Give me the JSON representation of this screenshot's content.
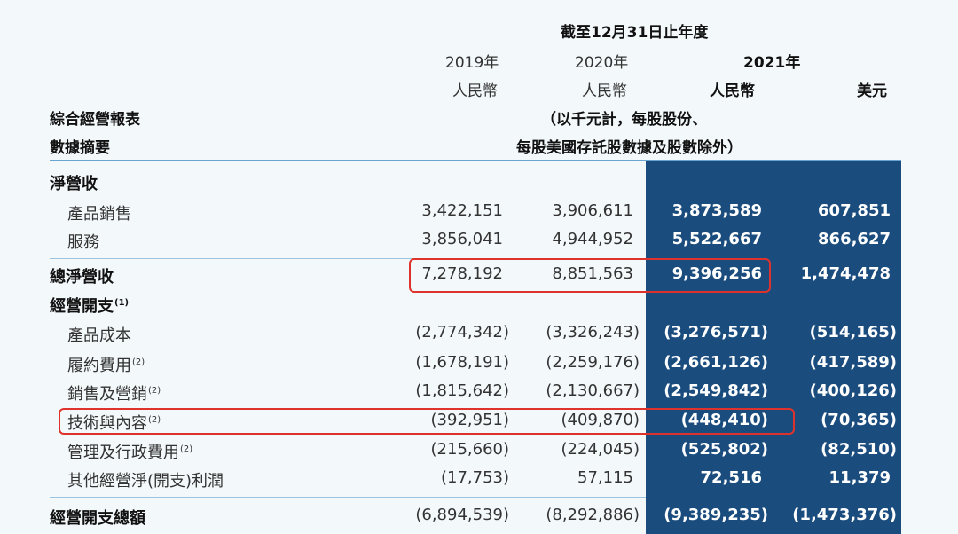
{
  "header": {
    "period": "截至12月31日止年度",
    "year_2019": "2019年",
    "year_2020": "2020年",
    "year_2021": "2021年",
    "rmb_2019": "人民幣",
    "rmb_2020": "人民幣",
    "rmb_2021": "人民幣",
    "usd": "美元",
    "unit_line1": "（以千元計，每股股份、",
    "unit_line2": "每股美國存託股數據及股數除外）"
  },
  "titles": {
    "statement": "綜合經營報表",
    "summary": "數據摘要"
  },
  "rows": [
    {
      "label": "淨營收",
      "section": true,
      "note": "",
      "values": [
        "",
        "",
        "",
        ""
      ]
    },
    {
      "label": "產品銷售",
      "section": false,
      "note": "",
      "values": [
        "3,422,151",
        "3,906,611",
        "3,873,589",
        "607,851"
      ]
    },
    {
      "label": "服務",
      "section": false,
      "note": "",
      "values": [
        "3,856,041",
        "4,944,952",
        "5,522,667",
        "866,627"
      ]
    },
    {
      "label": "總淨營收",
      "section": true,
      "note": "",
      "values": [
        "7,278,192",
        "8,851,563",
        "9,396,256",
        "1,474,478"
      ]
    },
    {
      "label": "經營開支",
      "section": true,
      "note": "(1)",
      "values": [
        "",
        "",
        "",
        ""
      ]
    },
    {
      "label": "產品成本",
      "section": false,
      "note": "",
      "values": [
        "(2,774,342)",
        "(3,326,243)",
        "(3,276,571)",
        "(514,165)"
      ]
    },
    {
      "label": "履約費用",
      "section": false,
      "note": "(2)",
      "values": [
        "(1,678,191)",
        "(2,259,176)",
        "(2,661,126)",
        "(417,589)"
      ]
    },
    {
      "label": "銷售及營銷",
      "section": false,
      "note": "(2)",
      "values": [
        "(1,815,642)",
        "(2,130,667)",
        "(2,549,842)",
        "(400,126)"
      ]
    },
    {
      "label": "技術與內容",
      "section": false,
      "note": "(2)",
      "values": [
        "(392,951)",
        "(409,870)",
        "(448,410)",
        "(70,365)"
      ]
    },
    {
      "label": "管理及行政費用",
      "section": false,
      "note": "(2)",
      "values": [
        "(215,660)",
        "(224,045)",
        "(525,802)",
        "(82,510)"
      ]
    },
    {
      "label": "其他經營淨(開支)利潤",
      "section": false,
      "note": "",
      "values": [
        "(17,753)",
        "57,115",
        "72,516",
        "11,379"
      ]
    },
    {
      "label": "經營開支總額",
      "section": true,
      "note": "",
      "values": [
        "(6,894,539)",
        "(8,292,886)",
        "(9,389,235)",
        "(1,473,376)"
      ]
    }
  ],
  "colors": {
    "highlight_column": "#1b4c7e",
    "annotation_box": "#e0322c",
    "rule": "#6aa5cf"
  }
}
